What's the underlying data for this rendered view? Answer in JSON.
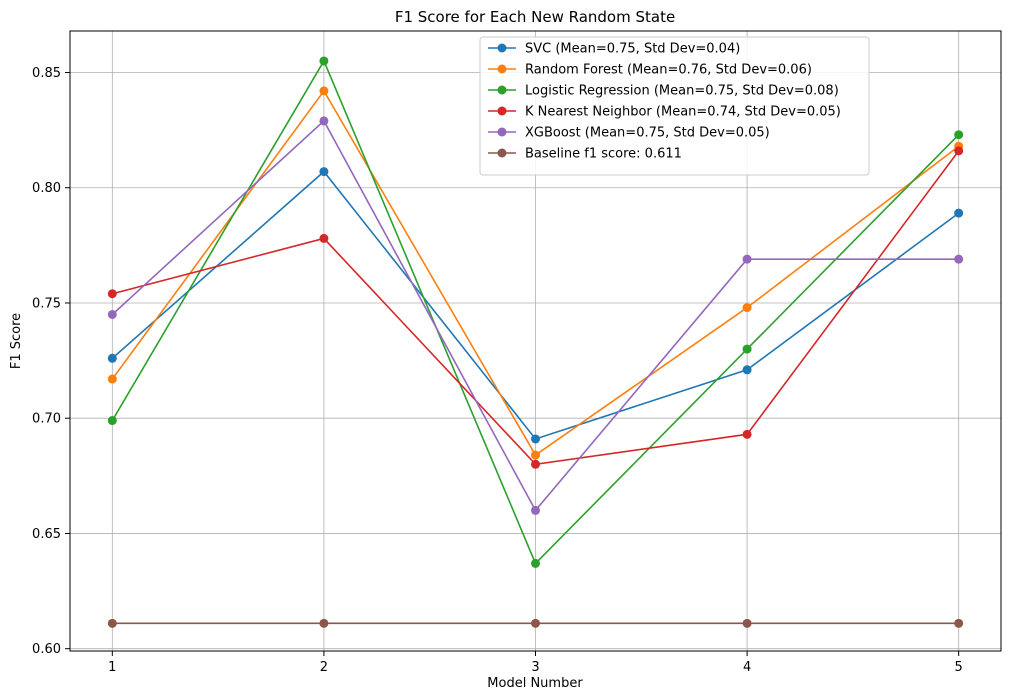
{
  "chart_data": {
    "type": "line",
    "title": "F1 Score for Each New Random State",
    "xlabel": "Model Number",
    "ylabel": "F1 Score",
    "x": [
      1,
      2,
      3,
      4,
      5
    ],
    "xlim": [
      0.8,
      5.2
    ],
    "ylim": [
      0.599,
      0.868
    ],
    "yticks": [
      "0.60",
      "0.65",
      "0.70",
      "0.75",
      "0.80",
      "0.85"
    ],
    "xticks": [
      "1",
      "2",
      "3",
      "4",
      "5"
    ],
    "grid": true,
    "legend_position": "top-center",
    "series": [
      {
        "name": "SVC (Mean=0.75, Std Dev=0.04)",
        "color": "#1f77b4",
        "values": [
          0.726,
          0.807,
          0.691,
          0.721,
          0.789
        ]
      },
      {
        "name": "Random Forest (Mean=0.76, Std Dev=0.06)",
        "color": "#ff7f0e",
        "values": [
          0.717,
          0.842,
          0.684,
          0.748,
          0.818
        ]
      },
      {
        "name": "Logistic Regression (Mean=0.75, Std Dev=0.08)",
        "color": "#2ca02c",
        "values": [
          0.699,
          0.855,
          0.637,
          0.73,
          0.823
        ]
      },
      {
        "name": "K Nearest Neighbor (Mean=0.74, Std Dev=0.05)",
        "color": "#d62728",
        "values": [
          0.754,
          0.778,
          0.68,
          0.693,
          0.816
        ]
      },
      {
        "name": "XGBoost (Mean=0.75, Std Dev=0.05)",
        "color": "#9467bd",
        "values": [
          0.745,
          0.829,
          0.66,
          0.769,
          0.769
        ]
      },
      {
        "name": "Baseline f1 score: 0.611",
        "color": "#8c564b",
        "values": [
          0.611,
          0.611,
          0.611,
          0.611,
          0.611
        ]
      }
    ]
  }
}
